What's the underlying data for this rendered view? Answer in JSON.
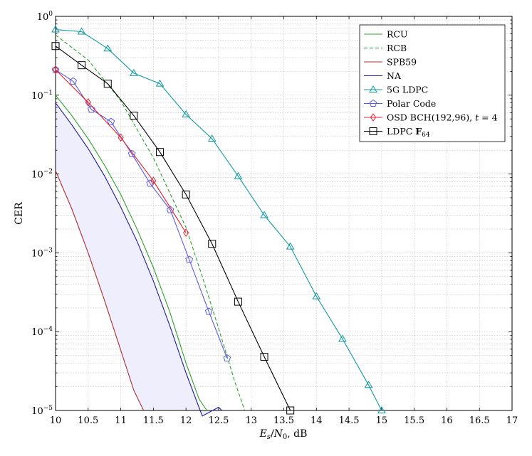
{
  "chart_data": {
    "type": "line",
    "xlabel": "E_s/N_0, dB",
    "ylabel": "CER",
    "xlim": [
      10,
      17
    ],
    "ylim": [
      1e-05,
      1
    ],
    "yscale": "log",
    "grid": true,
    "legend_position": "top-right",
    "x_ticks": [
      "10",
      "10.5",
      "11",
      "11.5",
      "12",
      "12.5",
      "13",
      "13.5",
      "14",
      "14.5",
      "15",
      "15.5",
      "16",
      "16.5",
      "17"
    ],
    "y_ticks": [
      {
        "base": "10",
        "exp": "−5",
        "value": 1e-05
      },
      {
        "base": "10",
        "exp": "−4",
        "value": 0.0001
      },
      {
        "base": "10",
        "exp": "−3",
        "value": 0.001
      },
      {
        "base": "10",
        "exp": "−2",
        "value": 0.01
      },
      {
        "base": "10",
        "exp": "−1",
        "value": 0.1
      },
      {
        "base": "10",
        "exp": "0",
        "value": 1
      }
    ],
    "shaded_region": {
      "between": [
        "NA",
        "SPB59"
      ],
      "color": "#eeeefc"
    },
    "series": [
      {
        "name": "RCU",
        "color": "#2ca02c",
        "dash": "solid",
        "marker": "none",
        "x": [
          10,
          10.25,
          10.5,
          10.75,
          11,
          11.25,
          11.5,
          11.75,
          12,
          12.2,
          12.32
        ],
        "y": [
          0.1,
          0.055,
          0.028,
          0.013,
          0.0055,
          0.002,
          0.00065,
          0.00018,
          4e-05,
          1.4e-05,
          1e-05
        ]
      },
      {
        "name": "RCB",
        "color": "#2ca02c",
        "dash": "dashed",
        "marker": "none",
        "x": [
          10,
          10.5,
          11,
          11.5,
          12,
          12.25,
          12.5,
          12.75,
          12.9
        ],
        "y": [
          0.58,
          0.28,
          0.085,
          0.016,
          0.0021,
          0.0005,
          0.00011,
          2.3e-05,
          1e-05
        ]
      },
      {
        "name": "SPB59",
        "color": "#b02a30",
        "dash": "solid",
        "marker": "none",
        "x": [
          10,
          10.25,
          10.5,
          10.75,
          11,
          11.2,
          11.35
        ],
        "y": [
          0.011,
          0.0036,
          0.001,
          0.00025,
          5.8e-05,
          1.8e-05,
          1e-05
        ]
      },
      {
        "name": "NA",
        "color": "#1a1aa0",
        "dash": "solid",
        "marker": "none",
        "x": [
          10,
          10.25,
          10.5,
          10.75,
          11,
          11.25,
          11.5,
          11.75,
          12,
          12.25,
          12.5,
          12.55
        ],
        "y": [
          0.08,
          0.042,
          0.021,
          0.0095,
          0.0038,
          0.0014,
          0.00044,
          0.00012,
          3e-05,
          8.5e-06,
          1.1e-05,
          1e-05
        ]
      },
      {
        "name": "5G LDPC",
        "color": "#0f9aa0",
        "dash": "solid",
        "marker": "triangle",
        "x": [
          10,
          10.4,
          10.8,
          11.2,
          11.6,
          12,
          12.4,
          12.8,
          13.2,
          13.6,
          14,
          14.4,
          14.8,
          15
        ],
        "y": [
          0.68,
          0.64,
          0.39,
          0.19,
          0.14,
          0.057,
          0.028,
          0.0094,
          0.003,
          0.0012,
          0.00028,
          8.1e-05,
          2.1e-05,
          1e-05
        ]
      },
      {
        "name": "Polar Code",
        "color": "#5a5ae6",
        "dash": "solid",
        "marker": "pentagon",
        "x": [
          10,
          10.27,
          10.55,
          10.85,
          11.17,
          11.45,
          11.76,
          12.05,
          12.35,
          12.63
        ],
        "y": [
          0.21,
          0.15,
          0.066,
          0.046,
          0.018,
          0.0076,
          0.0035,
          0.00082,
          0.00018,
          4.6e-05
        ]
      },
      {
        "name": "OSD BCH(192,96), t = 4",
        "color": "#e8212b",
        "dash": "solid",
        "marker": "diamond",
        "x": [
          10,
          10.5,
          11,
          11.5,
          12
        ],
        "y": [
          0.21,
          0.081,
          0.029,
          0.0082,
          0.0018
        ]
      },
      {
        "name": "LDPC F64",
        "color": "#000000",
        "dash": "solid",
        "marker": "square",
        "x": [
          10,
          10.4,
          10.8,
          11.2,
          11.6,
          12,
          12.4,
          12.8,
          13.2,
          13.6
        ],
        "y": [
          0.42,
          0.24,
          0.14,
          0.055,
          0.019,
          0.0055,
          0.0013,
          0.00024,
          4.8e-05,
          1e-05
        ]
      }
    ],
    "legend_labels": {
      "RCU": "RCU",
      "RCB": "RCB",
      "SPB59": "SPB59",
      "NA": "NA",
      "5G LDPC": "5G LDPC",
      "Polar Code": "Polar Code",
      "OSD BCH": "OSD BCH(192,96),",
      "OSD BCH t": "t",
      "OSD BCH eq": " = 4",
      "LDPC F64 base": "LDPC ",
      "LDPC F64 field": "F",
      "LDPC F64 sub": "64"
    },
    "xlabel_parts": {
      "E": "E",
      "s": "s",
      "slash": "/",
      "N": "N",
      "zero": "0",
      "tail": ", dB"
    }
  }
}
